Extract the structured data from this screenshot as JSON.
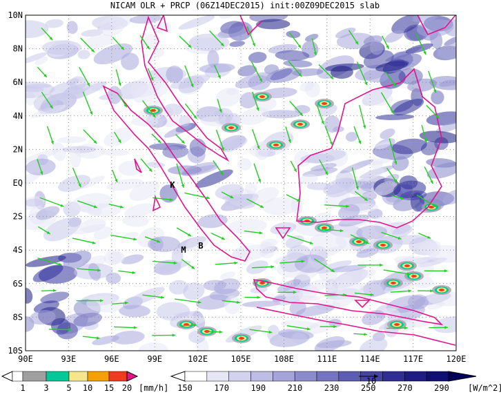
{
  "header": {
    "title": "NICAM OLR + PRCP (06Z14DEC2015) init:00Z09DEC2015 slab"
  },
  "map": {
    "lat_labels": [
      "10N",
      "8N",
      "6N",
      "4N",
      "2N",
      "EQ",
      "2S",
      "4S",
      "6S",
      "8S",
      "10S"
    ],
    "lon_labels": [
      "90E",
      "93E",
      "96E",
      "99E",
      "102E",
      "105E",
      "108E",
      "111E",
      "114E",
      "117E",
      "120E"
    ],
    "places": [
      "K",
      "M",
      "B"
    ]
  },
  "legend": {
    "precip": {
      "ticks": [
        1,
        3,
        5,
        10,
        15,
        20
      ],
      "unit": "[mm/h]"
    },
    "olr": {
      "ticks": [
        150,
        170,
        190,
        210,
        230,
        250,
        270,
        290
      ],
      "unit": "[W/m^2]"
    },
    "vector_scale": 10
  }
}
